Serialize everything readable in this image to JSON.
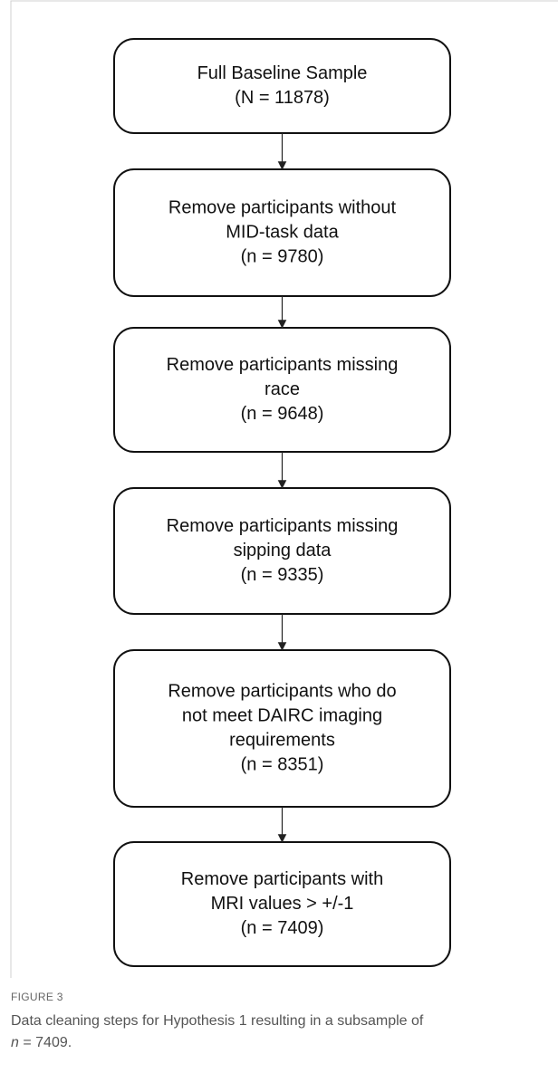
{
  "nodes": [
    {
      "lines": [
        "Full Baseline Sample",
        "(N = 11878)"
      ]
    },
    {
      "lines": [
        "Remove participants without",
        "MID-task data",
        "(n = 9780)"
      ]
    },
    {
      "lines": [
        "Remove participants missing",
        "race",
        "(n = 9648)"
      ]
    },
    {
      "lines": [
        "Remove participants missing",
        "sipping data",
        "(n = 9335)"
      ]
    },
    {
      "lines": [
        "Remove participants who do",
        "not meet DAIRC imaging",
        "requirements",
        "(n = 8351)"
      ]
    },
    {
      "lines": [
        "Remove participants with",
        "MRI values > +/-1",
        "(n = 7409)"
      ]
    }
  ],
  "caption": {
    "label": "FIGURE 3",
    "text": "Data cleaning steps for Hypothesis 1 resulting in a subsample of",
    "variable": "n",
    "value_text": " = 7409."
  }
}
